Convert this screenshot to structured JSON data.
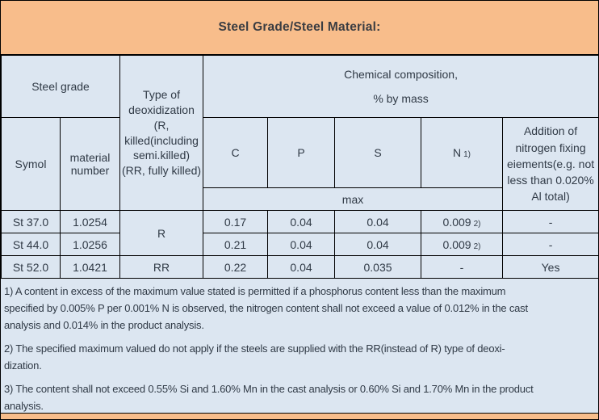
{
  "banner": {
    "title": "Steel Grade/Steel Material:"
  },
  "colors": {
    "banner_bg": "#F8BD8B",
    "cell_bg": "#DCE6F1",
    "border": "#000000",
    "table_text": "#303A46",
    "title_text": "#3B3D42"
  },
  "table": {
    "header": {
      "steel_grade": "Steel grade",
      "symbol": "Symol",
      "material_number": "material number",
      "deoxidization": "Type of deoxidization (R, killed(including semi.killed)(RR, fully killed)",
      "chem_comp_line1": "Chemical composition,",
      "chem_comp_line2": "% by mass",
      "col_c": "C",
      "col_p": "P",
      "col_s": "S",
      "col_n": "N",
      "col_n_note": "1)",
      "addition": "Addition of nitrogen fixing eiements(e.g. not less than 0.020% Al total)",
      "max_label": "max"
    },
    "rows": [
      {
        "symbol": "St 37.0",
        "material_number": "1.0254",
        "deox": "R",
        "c": "0.17",
        "p": "0.04",
        "s": "0.04",
        "n": "0.009",
        "n_note": "2)",
        "addition": "-"
      },
      {
        "symbol": "St 44.0",
        "material_number": "1.0256",
        "deox": "",
        "c": "0.21",
        "p": "0.04",
        "s": "0.04",
        "n": "0.009",
        "n_note": "2)",
        "addition": "-"
      },
      {
        "symbol": "St 52.0",
        "material_number": "1.0421",
        "deox": "RR",
        "c": "0.22",
        "p": "0.04",
        "s": "0.035",
        "n": "-",
        "n_note": "",
        "addition": "Yes"
      }
    ]
  },
  "footnotes": [
    "1)  A content in excess of the maximum value stated is permitted if a phosphorus content less than the maximum\nspecified by 0.005% P per 0.001% N is observed, the nitrogen content shall not exceed a value of 0.012% in the cast\nanalysis and 0.014% in the product analysis.",
    "2)  The specified maximum valued do not apply if the steels are supplied with the RR(instead of R) type of deoxi-\ndization.",
    "3)  The content shall not exceed 0.55% Si and 1.60% Mn in the cast analysis or 0.60% Si and 1.70% Mn in the product\nanalysis."
  ]
}
